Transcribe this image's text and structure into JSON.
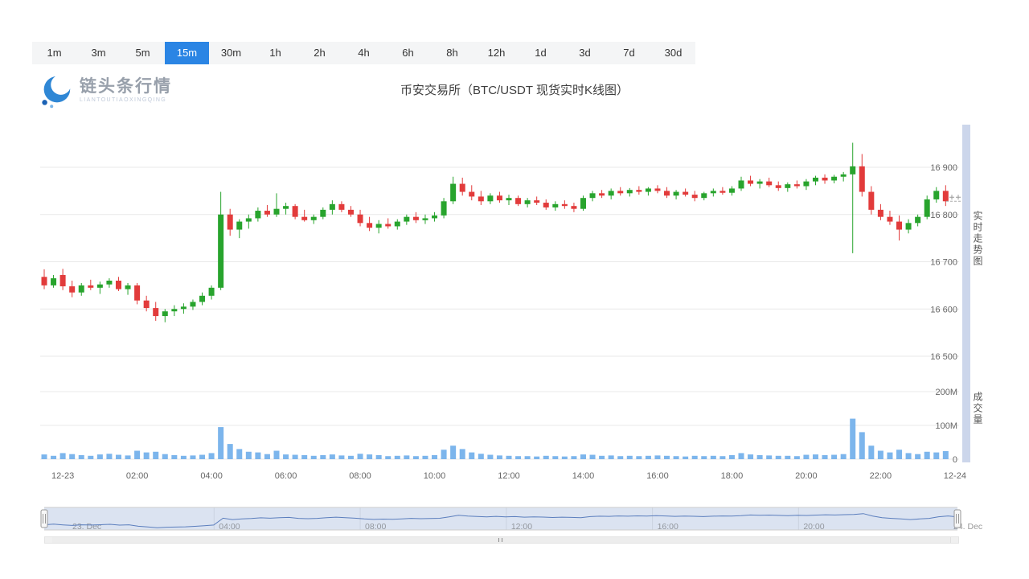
{
  "toolbar": {
    "intervals": [
      "1m",
      "3m",
      "5m",
      "15m",
      "30m",
      "1h",
      "2h",
      "4h",
      "6h",
      "8h",
      "12h",
      "1d",
      "3d",
      "7d",
      "30d"
    ],
    "active": "15m",
    "active_color": "#2b85e4"
  },
  "brand": {
    "name": "链头条行情",
    "subtitle": "LIANTOUTIAOXINGQING"
  },
  "header": {
    "title": "币安交易所（BTC/USDT 现货实时K线图）"
  },
  "side_labels": {
    "price_pane": "实时走势图",
    "volume_pane": "成交量"
  },
  "navigator": {
    "labels": [
      "23. Dec",
      "04:00",
      "08:00",
      "12:00",
      "16:00",
      "20:00"
    ],
    "right_label": "24. Dec",
    "bg": "#e9eef7",
    "line_color": "#5b7dbd"
  },
  "chart_data": {
    "type": "candlestick",
    "symbol": "BTC/USDT",
    "interval": "15m",
    "title": "币安交易所（BTC/USDT 现货实时K线图）",
    "price_axis": {
      "ticks": [
        "16 900",
        "16 800",
        "16 700",
        "16 600",
        "16 500"
      ],
      "values": [
        16900,
        16800,
        16700,
        16600,
        16500
      ],
      "ylim": [
        16455,
        16990
      ]
    },
    "volume_axis": {
      "ticks": [
        "200M",
        "100M",
        "0"
      ],
      "values": [
        200,
        100,
        0
      ],
      "unit": "M"
    },
    "x_axis": {
      "labels": [
        {
          "i": 2,
          "t": "12-23"
        },
        {
          "i": 10,
          "t": "02:00"
        },
        {
          "i": 18,
          "t": "04:00"
        },
        {
          "i": 26,
          "t": "06:00"
        },
        {
          "i": 34,
          "t": "08:00"
        },
        {
          "i": 42,
          "t": "10:00"
        },
        {
          "i": 50,
          "t": "12:00"
        },
        {
          "i": 58,
          "t": "14:00"
        },
        {
          "i": 66,
          "t": "16:00"
        },
        {
          "i": 74,
          "t": "18:00"
        },
        {
          "i": 82,
          "t": "20:00"
        },
        {
          "i": 90,
          "t": "22:00"
        },
        {
          "i": 98,
          "t": "12-24"
        }
      ]
    },
    "colors": {
      "up": "#28a42d",
      "down": "#e23b3b",
      "volume": "#7cb5ec",
      "grid": "#e8e8e8"
    },
    "candle_fields": [
      "open",
      "high",
      "low",
      "close",
      "volume_M"
    ],
    "candles": [
      [
        16668,
        16684,
        16642,
        16650,
        14
      ],
      [
        16650,
        16672,
        16645,
        16665,
        10
      ],
      [
        16672,
        16685,
        16640,
        16648,
        18
      ],
      [
        16648,
        16660,
        16625,
        16635,
        15
      ],
      [
        16635,
        16655,
        16628,
        16650,
        12
      ],
      [
        16650,
        16662,
        16640,
        16645,
        10
      ],
      [
        16645,
        16658,
        16632,
        16652,
        14
      ],
      [
        16652,
        16665,
        16645,
        16660,
        16
      ],
      [
        16660,
        16668,
        16638,
        16642,
        13
      ],
      [
        16642,
        16655,
        16630,
        16650,
        11
      ],
      [
        16650,
        16655,
        16610,
        16618,
        25
      ],
      [
        16618,
        16628,
        16595,
        16602,
        20
      ],
      [
        16602,
        16615,
        16575,
        16585,
        22
      ],
      [
        16585,
        16600,
        16572,
        16595,
        15
      ],
      [
        16595,
        16608,
        16585,
        16600,
        12
      ],
      [
        16600,
        16612,
        16590,
        16605,
        10
      ],
      [
        16605,
        16620,
        16598,
        16615,
        11
      ],
      [
        16615,
        16635,
        16608,
        16628,
        13
      ],
      [
        16628,
        16650,
        16620,
        16645,
        18
      ],
      [
        16645,
        16848,
        16640,
        16800,
        95
      ],
      [
        16800,
        16812,
        16755,
        16768,
        45
      ],
      [
        16768,
        16790,
        16750,
        16785,
        30
      ],
      [
        16785,
        16800,
        16770,
        16792,
        22
      ],
      [
        16792,
        16815,
        16785,
        16808,
        20
      ],
      [
        16808,
        16820,
        16795,
        16800,
        15
      ],
      [
        16800,
        16845,
        16795,
        16812,
        25
      ],
      [
        16812,
        16825,
        16800,
        16818,
        14
      ],
      [
        16818,
        16822,
        16790,
        16795,
        13
      ],
      [
        16795,
        16810,
        16785,
        16788,
        12
      ],
      [
        16788,
        16800,
        16780,
        16795,
        10
      ],
      [
        16795,
        16815,
        16790,
        16810,
        12
      ],
      [
        16810,
        16830,
        16800,
        16822,
        14
      ],
      [
        16822,
        16828,
        16805,
        16810,
        11
      ],
      [
        16810,
        16818,
        16795,
        16800,
        10
      ],
      [
        16800,
        16810,
        16775,
        16782,
        16
      ],
      [
        16782,
        16795,
        16765,
        16772,
        14
      ],
      [
        16772,
        16788,
        16760,
        16780,
        12
      ],
      [
        16780,
        16792,
        16770,
        16775,
        9
      ],
      [
        16775,
        16790,
        16768,
        16785,
        10
      ],
      [
        16785,
        16800,
        16778,
        16795,
        11
      ],
      [
        16795,
        16805,
        16782,
        16788,
        9
      ],
      [
        16788,
        16800,
        16780,
        16792,
        10
      ],
      [
        16792,
        16805,
        16785,
        16798,
        12
      ],
      [
        16798,
        16835,
        16792,
        16828,
        28
      ],
      [
        16828,
        16880,
        16822,
        16865,
        40
      ],
      [
        16865,
        16878,
        16840,
        16848,
        30
      ],
      [
        16848,
        16862,
        16830,
        16838,
        20
      ],
      [
        16838,
        16850,
        16820,
        16828,
        16
      ],
      [
        16828,
        16845,
        16822,
        16840,
        13
      ],
      [
        16840,
        16848,
        16825,
        16830,
        11
      ],
      [
        16830,
        16842,
        16820,
        16835,
        10
      ],
      [
        16835,
        16840,
        16818,
        16822,
        9
      ],
      [
        16822,
        16835,
        16815,
        16830,
        9
      ],
      [
        16830,
        16838,
        16820,
        16825,
        8
      ],
      [
        16825,
        16832,
        16810,
        16815,
        10
      ],
      [
        16815,
        16828,
        16808,
        16822,
        9
      ],
      [
        16822,
        16830,
        16812,
        16818,
        8
      ],
      [
        16818,
        16825,
        16805,
        16812,
        9
      ],
      [
        16812,
        16840,
        16808,
        16835,
        14
      ],
      [
        16835,
        16850,
        16828,
        16845,
        13
      ],
      [
        16845,
        16852,
        16835,
        16840,
        10
      ],
      [
        16840,
        16855,
        16832,
        16850,
        11
      ],
      [
        16850,
        16858,
        16840,
        16845,
        9
      ],
      [
        16845,
        16856,
        16838,
        16852,
        10
      ],
      [
        16852,
        16860,
        16842,
        16848,
        9
      ],
      [
        16848,
        16858,
        16840,
        16855,
        10
      ],
      [
        16855,
        16862,
        16845,
        16850,
        11
      ],
      [
        16850,
        16858,
        16835,
        16840,
        10
      ],
      [
        16840,
        16852,
        16832,
        16848,
        9
      ],
      [
        16848,
        16855,
        16838,
        16842,
        8
      ],
      [
        16842,
        16850,
        16828,
        16835,
        10
      ],
      [
        16835,
        16848,
        16830,
        16845,
        9
      ],
      [
        16845,
        16855,
        16838,
        16850,
        10
      ],
      [
        16850,
        16858,
        16842,
        16846,
        9
      ],
      [
        16846,
        16860,
        16840,
        16855,
        12
      ],
      [
        16855,
        16880,
        16850,
        16872,
        18
      ],
      [
        16872,
        16882,
        16860,
        16865,
        14
      ],
      [
        16865,
        16875,
        16855,
        16870,
        12
      ],
      [
        16870,
        16878,
        16858,
        16862,
        11
      ],
      [
        16862,
        16870,
        16850,
        16856,
        10
      ],
      [
        16856,
        16868,
        16848,
        16864,
        10
      ],
      [
        16864,
        16872,
        16855,
        16860,
        9
      ],
      [
        16860,
        16875,
        16852,
        16870,
        13
      ],
      [
        16870,
        16882,
        16862,
        16878,
        14
      ],
      [
        16878,
        16885,
        16865,
        16872,
        12
      ],
      [
        16872,
        16884,
        16866,
        16880,
        13
      ],
      [
        16880,
        16890,
        16870,
        16885,
        15
      ],
      [
        16885,
        16952,
        16718,
        16902,
        120
      ],
      [
        16902,
        16928,
        16838,
        16848,
        80
      ],
      [
        16848,
        16860,
        16800,
        16810,
        40
      ],
      [
        16810,
        16822,
        16788,
        16795,
        25
      ],
      [
        16795,
        16808,
        16778,
        16785,
        20
      ],
      [
        16785,
        16798,
        16745,
        16768,
        28
      ],
      [
        16768,
        16790,
        16760,
        16782,
        18
      ],
      [
        16782,
        16800,
        16775,
        16795,
        15
      ],
      [
        16795,
        16840,
        16790,
        16832,
        22
      ],
      [
        16832,
        16858,
        16825,
        16850,
        20
      ],
      [
        16850,
        16862,
        16818,
        16828,
        24
      ]
    ]
  }
}
